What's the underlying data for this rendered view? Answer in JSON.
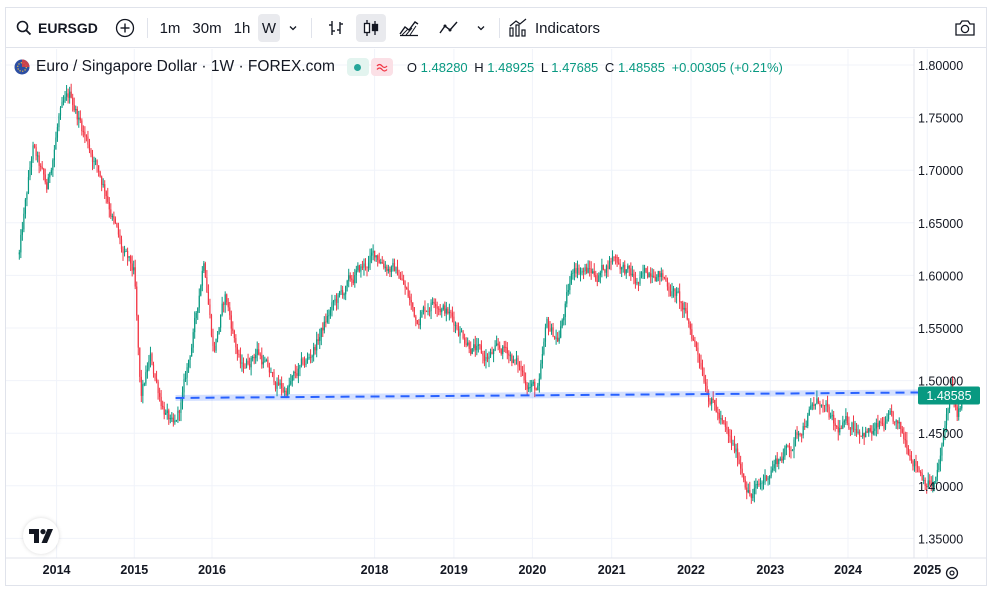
{
  "toolbar": {
    "symbol": "EURSGD",
    "intervals": [
      "1m",
      "30m",
      "1h",
      "W"
    ],
    "active_interval": "W",
    "indicators_label": "Indicators"
  },
  "legend": {
    "title": "Euro / Singapore Dollar · 1W · FOREX.com",
    "o_label": "O",
    "o_value": "1.48280",
    "h_label": "H",
    "h_value": "1.48925",
    "l_label": "L",
    "l_value": "1.47685",
    "c_label": "C",
    "c_value": "1.48585",
    "change": "+0.00305 (+0.21%)"
  },
  "colors": {
    "up": "#089981",
    "down": "#f23645",
    "trendline": "#2962ff",
    "price_label_bg": "#089981"
  },
  "chart_data": {
    "type": "candlestick",
    "interval": "1W",
    "ylim": [
      1.32,
      1.81
    ],
    "y_ticks": [
      "1.80000",
      "1.75000",
      "1.70000",
      "1.65000",
      "1.60000",
      "1.55000",
      "1.50000",
      "1.45000",
      "1.40000",
      "1.35000"
    ],
    "x_ticks": [
      "2014",
      "2015",
      "2016",
      "2018",
      "2019",
      "2020",
      "2021",
      "2022",
      "2023",
      "2024",
      "2025"
    ],
    "last_price": "1.48585",
    "price_path": [
      {
        "t": 2013.55,
        "v": 1.62
      },
      {
        "t": 2013.72,
        "v": 1.72
      },
      {
        "t": 2013.9,
        "v": 1.68
      },
      {
        "t": 2014.05,
        "v": 1.75
      },
      {
        "t": 2014.2,
        "v": 1.77
      },
      {
        "t": 2014.4,
        "v": 1.73
      },
      {
        "t": 2014.65,
        "v": 1.68
      },
      {
        "t": 2014.85,
        "v": 1.62
      },
      {
        "t": 2015.0,
        "v": 1.6
      },
      {
        "t": 2015.08,
        "v": 1.48
      },
      {
        "t": 2015.2,
        "v": 1.52
      },
      {
        "t": 2015.35,
        "v": 1.48
      },
      {
        "t": 2015.5,
        "v": 1.45
      },
      {
        "t": 2015.6,
        "v": 1.48
      },
      {
        "t": 2015.78,
        "v": 1.56
      },
      {
        "t": 2015.88,
        "v": 1.62
      },
      {
        "t": 2016.0,
        "v": 1.53
      },
      {
        "t": 2016.15,
        "v": 1.58
      },
      {
        "t": 2016.35,
        "v": 1.51
      },
      {
        "t": 2016.55,
        "v": 1.53
      },
      {
        "t": 2016.75,
        "v": 1.5
      },
      {
        "t": 2016.9,
        "v": 1.49
      },
      {
        "t": 2017.2,
        "v": 1.52
      },
      {
        "t": 2017.5,
        "v": 1.57
      },
      {
        "t": 2017.8,
        "v": 1.6
      },
      {
        "t": 2018.05,
        "v": 1.62
      },
      {
        "t": 2018.35,
        "v": 1.6
      },
      {
        "t": 2018.55,
        "v": 1.56
      },
      {
        "t": 2018.8,
        "v": 1.58
      },
      {
        "t": 2019.1,
        "v": 1.55
      },
      {
        "t": 2019.4,
        "v": 1.52
      },
      {
        "t": 2019.7,
        "v": 1.53
      },
      {
        "t": 2019.95,
        "v": 1.5
      },
      {
        "t": 2020.1,
        "v": 1.49
      },
      {
        "t": 2020.2,
        "v": 1.55
      },
      {
        "t": 2020.35,
        "v": 1.54
      },
      {
        "t": 2020.55,
        "v": 1.61
      },
      {
        "t": 2020.85,
        "v": 1.6
      },
      {
        "t": 2021.05,
        "v": 1.62
      },
      {
        "t": 2021.35,
        "v": 1.59
      },
      {
        "t": 2021.55,
        "v": 1.61
      },
      {
        "t": 2021.85,
        "v": 1.58
      },
      {
        "t": 2022.1,
        "v": 1.53
      },
      {
        "t": 2022.25,
        "v": 1.49
      },
      {
        "t": 2022.45,
        "v": 1.45
      },
      {
        "t": 2022.65,
        "v": 1.42
      },
      {
        "t": 2022.78,
        "v": 1.39
      },
      {
        "t": 2022.9,
        "v": 1.4
      },
      {
        "t": 2023.05,
        "v": 1.42
      },
      {
        "t": 2023.3,
        "v": 1.44
      },
      {
        "t": 2023.5,
        "v": 1.47
      },
      {
        "t": 2023.65,
        "v": 1.48
      },
      {
        "t": 2023.85,
        "v": 1.45
      },
      {
        "t": 2024.05,
        "v": 1.46
      },
      {
        "t": 2024.3,
        "v": 1.45
      },
      {
        "t": 2024.55,
        "v": 1.46
      },
      {
        "t": 2024.75,
        "v": 1.44
      },
      {
        "t": 2024.95,
        "v": 1.41
      },
      {
        "t": 2025.1,
        "v": 1.4
      },
      {
        "t": 2025.2,
        "v": 1.44
      },
      {
        "t": 2025.3,
        "v": 1.5
      },
      {
        "t": 2025.38,
        "v": 1.46
      },
      {
        "t": 2025.45,
        "v": 1.48585
      }
    ],
    "trendline": [
      {
        "t": 2015.52,
        "v": 1.4835
      },
      {
        "t": 2025.45,
        "v": 1.489
      }
    ]
  }
}
